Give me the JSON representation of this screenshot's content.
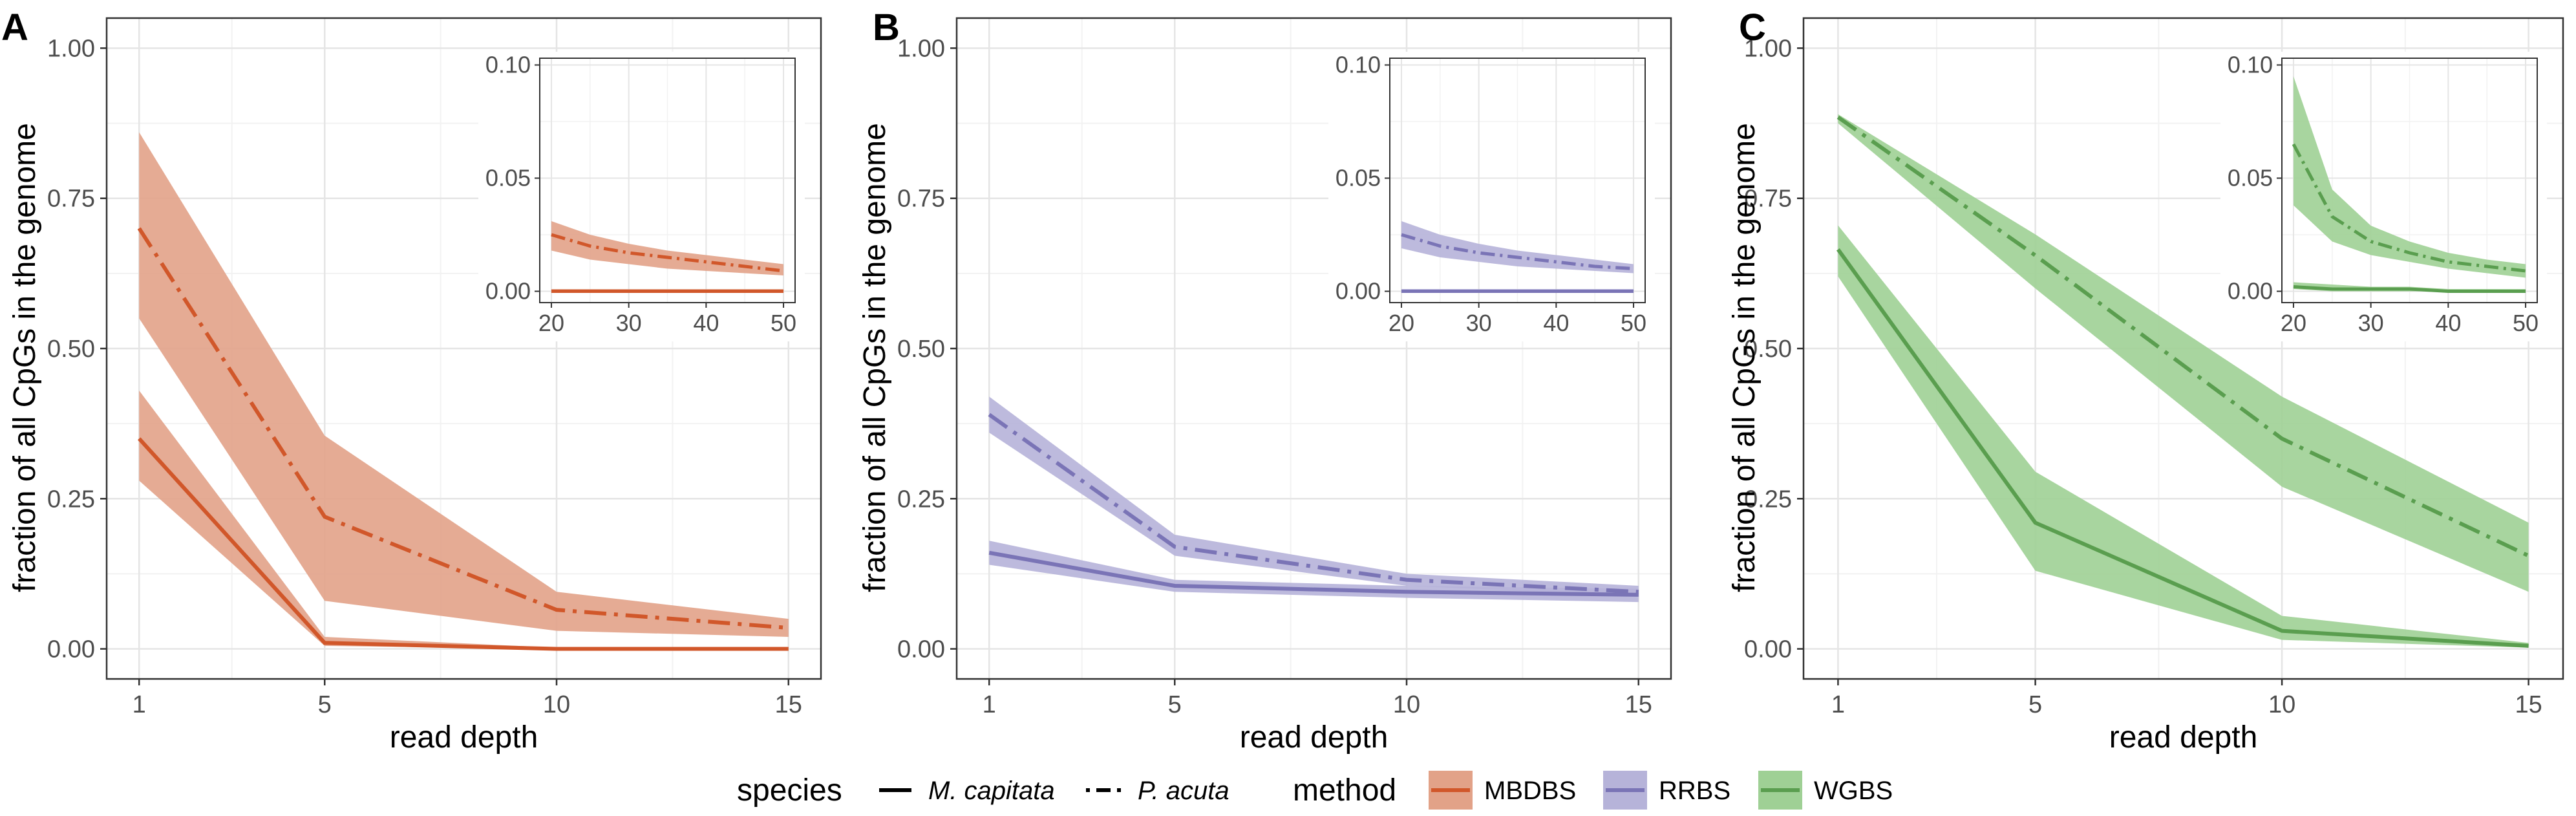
{
  "chart_data": [
    {
      "panel": "A",
      "type": "line",
      "method": "MBDBS",
      "xlabel": "read depth",
      "ylabel": "fraction of all CpGs in the genome",
      "x": [
        1,
        5,
        10,
        15
      ],
      "xticks": [
        "1",
        "5",
        "10",
        "15"
      ],
      "yticks": [
        "0.00",
        "0.25",
        "0.50",
        "0.75",
        "1.00"
      ],
      "xlim": [
        0.3,
        15.7
      ],
      "ylim": [
        -0.05,
        1.05
      ],
      "series": [
        {
          "name": "M. capitata",
          "line": "solid",
          "values": [
            0.35,
            0.01,
            0.0,
            0.0
          ],
          "lower": [
            0.28,
            0.005,
            0.0,
            0.0
          ],
          "upper": [
            0.43,
            0.02,
            0.002,
            0.001
          ]
        },
        {
          "name": "P. acuta",
          "line": "dashdot",
          "values": [
            0.7,
            0.22,
            0.065,
            0.035
          ],
          "lower": [
            0.55,
            0.08,
            0.03,
            0.02
          ],
          "upper": [
            0.86,
            0.355,
            0.095,
            0.05
          ]
        }
      ],
      "inset": {
        "x": [
          20,
          25,
          30,
          35,
          40,
          45,
          50
        ],
        "xticks": [
          "20",
          "30",
          "40",
          "50"
        ],
        "yticks": [
          "0.00",
          "0.05",
          "0.10"
        ],
        "xlim": [
          18.5,
          51.5
        ],
        "ylim": [
          -0.005,
          0.103
        ],
        "series": [
          {
            "name": "M. capitata",
            "line": "solid",
            "values": [
              0.0,
              0.0,
              0.0,
              0.0,
              0.0,
              0.0,
              0.0
            ],
            "lower": [
              0.0,
              0.0,
              0.0,
              0.0,
              0.0,
              0.0,
              0.0
            ],
            "upper": [
              0.001,
              0.001,
              0.001,
              0.001,
              0.001,
              0.001,
              0.001
            ]
          },
          {
            "name": "P. acuta",
            "line": "dashdot",
            "values": [
              0.025,
              0.02,
              0.017,
              0.015,
              0.013,
              0.011,
              0.009
            ],
            "lower": [
              0.018,
              0.014,
              0.012,
              0.01,
              0.009,
              0.008,
              0.007
            ],
            "upper": [
              0.031,
              0.025,
              0.021,
              0.018,
              0.016,
              0.014,
              0.012
            ]
          }
        ]
      }
    },
    {
      "panel": "B",
      "type": "line",
      "method": "RRBS",
      "xlabel": "read depth",
      "ylabel": "fraction of all CpGs in the genome",
      "x": [
        1,
        5,
        10,
        15
      ],
      "xticks": [
        "1",
        "5",
        "10",
        "15"
      ],
      "yticks": [
        "0.00",
        "0.25",
        "0.50",
        "0.75",
        "1.00"
      ],
      "xlim": [
        0.3,
        15.7
      ],
      "ylim": [
        -0.05,
        1.05
      ],
      "series": [
        {
          "name": "M. capitata",
          "line": "solid",
          "values": [
            0.16,
            0.105,
            0.095,
            0.09
          ],
          "lower": [
            0.14,
            0.095,
            0.085,
            0.078
          ],
          "upper": [
            0.18,
            0.115,
            0.105,
            0.1
          ]
        },
        {
          "name": "P. acuta",
          "line": "dashdot",
          "values": [
            0.39,
            0.17,
            0.115,
            0.095
          ],
          "lower": [
            0.36,
            0.155,
            0.105,
            0.088
          ],
          "upper": [
            0.42,
            0.19,
            0.125,
            0.105
          ]
        }
      ],
      "inset": {
        "x": [
          20,
          25,
          30,
          35,
          40,
          45,
          50
        ],
        "xticks": [
          "20",
          "30",
          "40",
          "50"
        ],
        "yticks": [
          "0.00",
          "0.05",
          "0.10"
        ],
        "xlim": [
          18.5,
          51.5
        ],
        "ylim": [
          -0.005,
          0.103
        ],
        "series": [
          {
            "name": "M. capitata",
            "line": "solid",
            "values": [
              0.0,
              0.0,
              0.0,
              0.0,
              0.0,
              0.0,
              0.0
            ],
            "lower": [
              0.0,
              0.0,
              0.0,
              0.0,
              0.0,
              0.0,
              0.0
            ],
            "upper": [
              0.001,
              0.001,
              0.001,
              0.001,
              0.001,
              0.001,
              0.001
            ]
          },
          {
            "name": "P. acuta",
            "line": "dashdot",
            "values": [
              0.025,
              0.02,
              0.017,
              0.015,
              0.013,
              0.011,
              0.01
            ],
            "lower": [
              0.019,
              0.015,
              0.013,
              0.011,
              0.01,
              0.009,
              0.008
            ],
            "upper": [
              0.031,
              0.025,
              0.021,
              0.018,
              0.016,
              0.014,
              0.012
            ]
          }
        ]
      }
    },
    {
      "panel": "C",
      "type": "line",
      "method": "WGBS",
      "xlabel": "read depth",
      "ylabel": "fraction of all CpGs in the genome",
      "x": [
        1,
        5,
        10,
        15
      ],
      "xticks": [
        "1",
        "5",
        "10",
        "15"
      ],
      "yticks": [
        "0.00",
        "0.25",
        "0.50",
        "0.75",
        "1.00"
      ],
      "xlim": [
        0.3,
        15.7
      ],
      "ylim": [
        -0.05,
        1.05
      ],
      "series": [
        {
          "name": "M. capitata",
          "line": "solid",
          "values": [
            0.665,
            0.21,
            0.03,
            0.005
          ],
          "lower": [
            0.62,
            0.13,
            0.015,
            0.002
          ],
          "upper": [
            0.705,
            0.295,
            0.055,
            0.01
          ]
        },
        {
          "name": "P. acuta",
          "line": "dashdot",
          "values": [
            0.885,
            0.655,
            0.35,
            0.155
          ],
          "lower": [
            0.875,
            0.6,
            0.27,
            0.095
          ],
          "upper": [
            0.89,
            0.69,
            0.42,
            0.21
          ]
        }
      ],
      "inset": {
        "x": [
          20,
          25,
          30,
          35,
          40,
          45,
          50
        ],
        "xticks": [
          "20",
          "30",
          "40",
          "50"
        ],
        "yticks": [
          "0.00",
          "0.05",
          "0.10"
        ],
        "xlim": [
          18.5,
          51.5
        ],
        "ylim": [
          -0.005,
          0.103
        ],
        "series": [
          {
            "name": "M. capitata",
            "line": "solid",
            "values": [
              0.002,
              0.001,
              0.001,
              0.001,
              0.0,
              0.0,
              0.0
            ],
            "lower": [
              0.001,
              0.0,
              0.0,
              0.0,
              0.0,
              0.0,
              0.0
            ],
            "upper": [
              0.004,
              0.003,
              0.002,
              0.002,
              0.001,
              0.001,
              0.001
            ]
          },
          {
            "name": "P. acuta",
            "line": "dashdot",
            "values": [
              0.065,
              0.033,
              0.022,
              0.017,
              0.013,
              0.011,
              0.009
            ],
            "lower": [
              0.038,
              0.022,
              0.016,
              0.013,
              0.01,
              0.008,
              0.006
            ],
            "upper": [
              0.095,
              0.045,
              0.029,
              0.022,
              0.017,
              0.014,
              0.012
            ]
          }
        ]
      }
    }
  ],
  "legend": {
    "species_title": "species",
    "species": [
      {
        "label": "M. capitata",
        "line": "solid"
      },
      {
        "label": "P. acuta",
        "line": "dashdot"
      }
    ],
    "method_title": "method",
    "methods": [
      {
        "label": "MBDBS",
        "color": "#d1572a",
        "fill": "#e2a288"
      },
      {
        "label": "RRBS",
        "color": "#7a74b6",
        "fill": "#b6b3d9"
      },
      {
        "label": "WGBS",
        "color": "#5a9e4f",
        "fill": "#9fd095"
      }
    ]
  }
}
